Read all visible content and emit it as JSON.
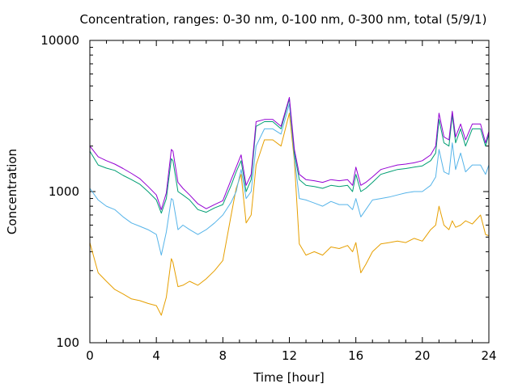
{
  "chart_data": {
    "type": "line",
    "title": "Concentration, ranges: 0-30 nm, 0-100 nm, 0-300 nm, total (5/9/1)",
    "xlabel": "Time [hour]",
    "ylabel": "Concentration",
    "xlim": [
      0,
      24
    ],
    "ylim": [
      100,
      10000
    ],
    "yscale": "log",
    "grid": false,
    "legend": "none",
    "xticks": [
      0,
      4,
      8,
      12,
      16,
      20,
      24
    ],
    "xtick_labels": [
      "0",
      "4",
      "8",
      "12",
      "16",
      "20",
      "24"
    ],
    "yticks": [
      100,
      1000,
      10000
    ],
    "ytick_labels": [
      "100",
      "1000",
      "10000"
    ],
    "x": [
      0,
      0.5,
      1,
      1.5,
      2,
      2.5,
      3,
      3.5,
      4,
      4.3,
      4.6,
      4.9,
      5.0,
      5.3,
      5.6,
      6,
      6.5,
      7,
      7.5,
      8,
      8.5,
      8.8,
      9.1,
      9.4,
      9.7,
      10,
      10.5,
      11,
      11.5,
      12,
      12.3,
      12.6,
      13,
      13.5,
      14,
      14.5,
      15,
      15.5,
      15.8,
      16,
      16.3,
      16.6,
      17,
      17.5,
      18,
      18.5,
      19,
      19.5,
      20,
      20.5,
      20.8,
      21.0,
      21.3,
      21.6,
      21.8,
      22.0,
      22.3,
      22.6,
      23,
      23.5,
      23.8,
      24
    ],
    "series": [
      {
        "color": "#e69f00",
        "values": [
          460,
          290,
          255,
          225,
          210,
          195,
          190,
          182,
          176,
          152,
          200,
          360,
          340,
          235,
          240,
          255,
          240,
          265,
          300,
          350,
          700,
          1050,
          1300,
          620,
          700,
          1500,
          2200,
          2200,
          2000,
          3300,
          1600,
          450,
          380,
          400,
          380,
          430,
          420,
          440,
          400,
          460,
          290,
          330,
          400,
          450,
          460,
          470,
          460,
          490,
          470,
          560,
          600,
          800,
          600,
          560,
          640,
          580,
          600,
          640,
          610,
          700,
          520,
          510
        ]
      },
      {
        "color": "#56b4e9",
        "values": [
          1050,
          880,
          800,
          760,
          680,
          620,
          590,
          560,
          520,
          380,
          540,
          900,
          880,
          560,
          600,
          560,
          520,
          560,
          620,
          700,
          850,
          1000,
          1400,
          900,
          1000,
          2000,
          2600,
          2600,
          2400,
          3800,
          1700,
          900,
          880,
          840,
          800,
          860,
          820,
          820,
          760,
          900,
          680,
          760,
          880,
          900,
          920,
          950,
          980,
          1000,
          1000,
          1100,
          1250,
          1900,
          1350,
          1300,
          2100,
          1400,
          1800,
          1350,
          1500,
          1500,
          1300,
          1500
        ]
      },
      {
        "color": "#009e73",
        "values": [
          1850,
          1500,
          1430,
          1380,
          1280,
          1200,
          1120,
          1000,
          880,
          720,
          900,
          1650,
          1600,
          1000,
          950,
          880,
          760,
          730,
          780,
          820,
          1100,
          1350,
          1600,
          1000,
          1200,
          2700,
          2900,
          2900,
          2600,
          4100,
          1800,
          1200,
          1100,
          1080,
          1050,
          1100,
          1080,
          1100,
          1000,
          1300,
          1000,
          1050,
          1150,
          1300,
          1350,
          1400,
          1420,
          1450,
          1480,
          1600,
          1800,
          3000,
          2100,
          2000,
          3200,
          2100,
          2600,
          2000,
          2600,
          2600,
          2000,
          2400
        ]
      },
      {
        "color": "#9400d3",
        "values": [
          2000,
          1700,
          1600,
          1520,
          1420,
          1320,
          1220,
          1080,
          950,
          760,
          980,
          1900,
          1850,
          1150,
          1050,
          950,
          830,
          770,
          820,
          870,
          1200,
          1450,
          1750,
          1100,
          1300,
          2900,
          3000,
          3000,
          2700,
          4200,
          1900,
          1300,
          1200,
          1180,
          1150,
          1200,
          1180,
          1200,
          1100,
          1450,
          1100,
          1150,
          1250,
          1400,
          1450,
          1500,
          1520,
          1550,
          1600,
          1750,
          2000,
          3300,
          2300,
          2200,
          3400,
          2300,
          2800,
          2200,
          2800,
          2800,
          2100,
          2500
        ]
      }
    ]
  }
}
